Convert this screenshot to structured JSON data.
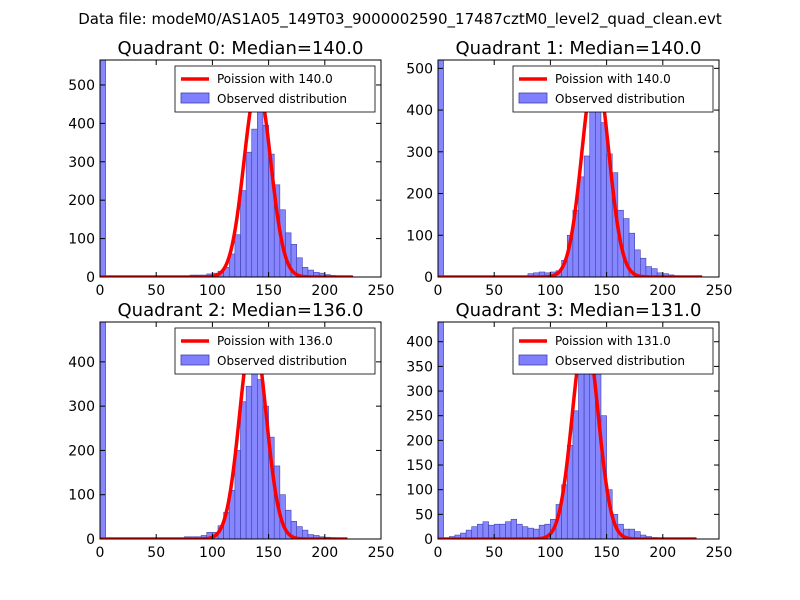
{
  "suptitle": "Data file: modeM0/AS1A05_149T03_9000002590_17487cztM0_level2_quad_clean.evt",
  "colors": {
    "bar_fill": "#7f7fff",
    "bar_edge": "#4040b0",
    "curve": "#ff0000",
    "curve_peak": "#f08080"
  },
  "chart_data": [
    {
      "type": "bar",
      "title": "Quadrant 0: Median=140.0",
      "xlim": [
        0,
        250
      ],
      "ylim": [
        0,
        565
      ],
      "xticks": [
        0,
        50,
        100,
        150,
        200,
        250
      ],
      "yticks": [
        0,
        100,
        200,
        300,
        400,
        500
      ],
      "legend": {
        "placement": "upper-right",
        "entries": [
          "Poission with 140.0",
          "Observed distribution"
        ]
      },
      "bin_width": 5,
      "bins": [
        [
          0,
          565
        ],
        [
          80,
          5
        ],
        [
          85,
          5
        ],
        [
          90,
          5
        ],
        [
          95,
          8
        ],
        [
          100,
          10
        ],
        [
          105,
          15
        ],
        [
          110,
          25
        ],
        [
          115,
          60
        ],
        [
          120,
          110
        ],
        [
          125,
          225
        ],
        [
          130,
          325
        ],
        [
          135,
          385
        ],
        [
          140,
          475
        ],
        [
          145,
          395
        ],
        [
          150,
          320
        ],
        [
          155,
          240
        ],
        [
          160,
          175
        ],
        [
          165,
          115
        ],
        [
          170,
          85
        ],
        [
          175,
          50
        ],
        [
          180,
          25
        ],
        [
          185,
          18
        ],
        [
          190,
          12
        ],
        [
          195,
          10
        ],
        [
          200,
          6
        ],
        [
          205,
          4
        ],
        [
          210,
          2
        ],
        [
          215,
          2
        ],
        [
          220,
          2
        ]
      ],
      "poisson": {
        "mean": 140.0,
        "peak": 500,
        "x_range": [
          0,
          225
        ]
      }
    },
    {
      "type": "bar",
      "title": "Quadrant 1: Median=140.0",
      "xlim": [
        0,
        250
      ],
      "ylim": [
        0,
        520
      ],
      "xticks": [
        0,
        50,
        100,
        150,
        200,
        250
      ],
      "yticks": [
        0,
        100,
        200,
        300,
        400,
        500
      ],
      "legend": {
        "placement": "upper-right",
        "entries": [
          "Poission with 140.0",
          "Observed distribution"
        ]
      },
      "bin_width": 5,
      "bins": [
        [
          0,
          520
        ],
        [
          80,
          8
        ],
        [
          85,
          10
        ],
        [
          90,
          12
        ],
        [
          95,
          10
        ],
        [
          100,
          12
        ],
        [
          105,
          15
        ],
        [
          110,
          40
        ],
        [
          115,
          100
        ],
        [
          120,
          160
        ],
        [
          125,
          240
        ],
        [
          130,
          290
        ],
        [
          135,
          400
        ],
        [
          140,
          490
        ],
        [
          145,
          370
        ],
        [
          150,
          295
        ],
        [
          155,
          250
        ],
        [
          160,
          160
        ],
        [
          165,
          140
        ],
        [
          170,
          105
        ],
        [
          175,
          65
        ],
        [
          180,
          45
        ],
        [
          185,
          25
        ],
        [
          190,
          20
        ],
        [
          195,
          10
        ],
        [
          200,
          8
        ],
        [
          205,
          5
        ],
        [
          210,
          3
        ],
        [
          215,
          2
        ],
        [
          220,
          2
        ],
        [
          225,
          2
        ],
        [
          230,
          1
        ]
      ],
      "poisson": {
        "mean": 140.0,
        "peak": 500,
        "x_range": [
          0,
          235
        ]
      }
    },
    {
      "type": "bar",
      "title": "Quadrant 2: Median=136.0",
      "xlim": [
        0,
        250
      ],
      "ylim": [
        0,
        490
      ],
      "xticks": [
        0,
        50,
        100,
        150,
        200,
        250
      ],
      "yticks": [
        0,
        100,
        200,
        300,
        400
      ],
      "legend": {
        "placement": "upper-right",
        "entries": [
          "Poission with 136.0",
          "Observed distribution"
        ]
      },
      "bin_width": 5,
      "bins": [
        [
          0,
          490
        ],
        [
          75,
          5
        ],
        [
          80,
          5
        ],
        [
          85,
          5
        ],
        [
          90,
          8
        ],
        [
          95,
          15
        ],
        [
          100,
          15
        ],
        [
          105,
          30
        ],
        [
          110,
          60
        ],
        [
          115,
          110
        ],
        [
          120,
          200
        ],
        [
          125,
          310
        ],
        [
          130,
          345
        ],
        [
          135,
          420
        ],
        [
          140,
          360
        ],
        [
          145,
          300
        ],
        [
          150,
          230
        ],
        [
          155,
          165
        ],
        [
          160,
          100
        ],
        [
          165,
          65
        ],
        [
          170,
          40
        ],
        [
          175,
          28
        ],
        [
          180,
          20
        ],
        [
          185,
          10
        ],
        [
          190,
          8
        ],
        [
          195,
          5
        ],
        [
          200,
          4
        ],
        [
          205,
          3
        ],
        [
          210,
          2
        ],
        [
          215,
          2
        ]
      ],
      "poisson": {
        "mean": 136.0,
        "peak": 470,
        "x_range": [
          0,
          220
        ]
      }
    },
    {
      "type": "bar",
      "title": "Quadrant 3: Median=131.0",
      "xlim": [
        0,
        250
      ],
      "ylim": [
        0,
        440
      ],
      "xticks": [
        0,
        50,
        100,
        150,
        200,
        250
      ],
      "yticks": [
        0,
        50,
        100,
        150,
        200,
        250,
        300,
        350,
        400
      ],
      "legend": {
        "placement": "upper-right",
        "entries": [
          "Poission with 131.0",
          "Observed distribution"
        ]
      },
      "bin_width": 5,
      "bins": [
        [
          0,
          440
        ],
        [
          10,
          5
        ],
        [
          15,
          8
        ],
        [
          20,
          12
        ],
        [
          25,
          18
        ],
        [
          30,
          25
        ],
        [
          35,
          30
        ],
        [
          40,
          35
        ],
        [
          45,
          28
        ],
        [
          50,
          30
        ],
        [
          55,
          30
        ],
        [
          60,
          35
        ],
        [
          65,
          40
        ],
        [
          70,
          30
        ],
        [
          75,
          25
        ],
        [
          80,
          22
        ],
        [
          85,
          20
        ],
        [
          90,
          28
        ],
        [
          95,
          30
        ],
        [
          100,
          40
        ],
        [
          105,
          70
        ],
        [
          110,
          110
        ],
        [
          115,
          190
        ],
        [
          120,
          260
        ],
        [
          125,
          350
        ],
        [
          130,
          410
        ],
        [
          135,
          400
        ],
        [
          140,
          340
        ],
        [
          145,
          250
        ],
        [
          150,
          100
        ],
        [
          155,
          50
        ],
        [
          160,
          30
        ],
        [
          165,
          20
        ],
        [
          170,
          20
        ],
        [
          175,
          15
        ],
        [
          180,
          8
        ],
        [
          185,
          5
        ],
        [
          190,
          3
        ],
        [
          195,
          2
        ],
        [
          200,
          2
        ]
      ],
      "poisson": {
        "mean": 131.0,
        "peak": 420,
        "x_range": [
          0,
          230
        ]
      }
    }
  ]
}
